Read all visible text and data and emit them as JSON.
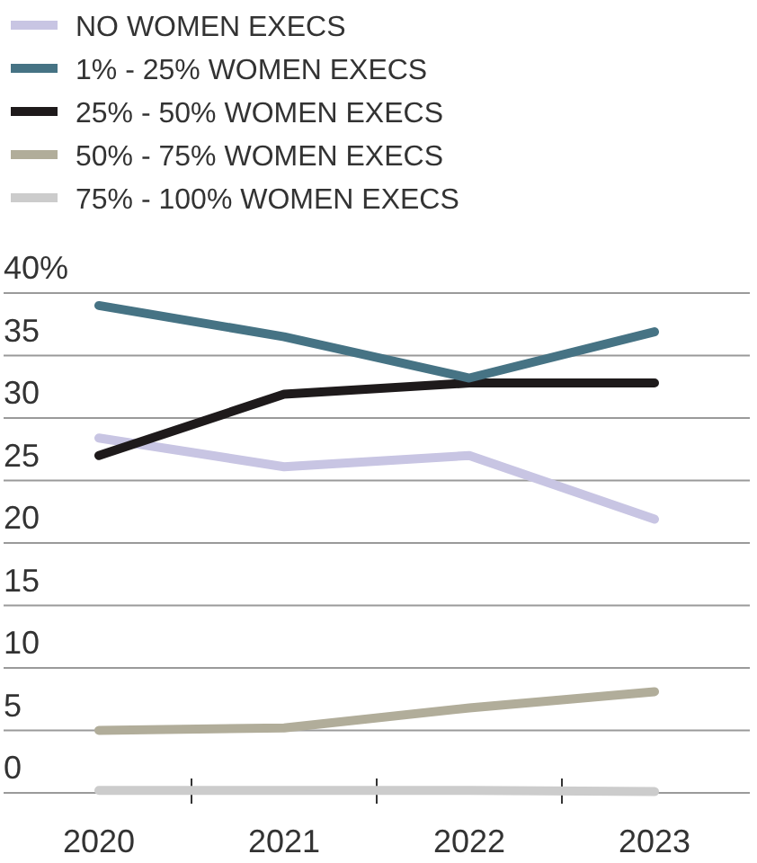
{
  "chart_data": {
    "type": "line",
    "categories": [
      "2020",
      "2021",
      "2022",
      "2023"
    ],
    "series": [
      {
        "name": "NO WOMEN EXECS",
        "color": "#c8c5e3",
        "values": [
          28.4,
          26.1,
          27.0,
          21.9
        ]
      },
      {
        "name": "1% - 25% WOMEN EXECS",
        "color": "#467384",
        "values": [
          39.0,
          36.5,
          33.2,
          36.9
        ]
      },
      {
        "name": "25% - 50% WOMEN EXECS",
        "color": "#1e1a1b",
        "values": [
          27.0,
          31.9,
          32.8,
          32.8
        ]
      },
      {
        "name": "50% - 75% WOMEN EXECS",
        "color": "#b1ad9a",
        "values": [
          5.0,
          5.2,
          6.8,
          8.1
        ]
      },
      {
        "name": "75% - 100% WOMEN EXECS",
        "color": "#cccccc",
        "values": [
          0.2,
          0.2,
          0.2,
          0.1
        ]
      }
    ],
    "ylim": [
      0,
      40
    ],
    "yticks": [
      0,
      5,
      10,
      15,
      20,
      25,
      30,
      35,
      {
        "value": 40,
        "label": "40%"
      }
    ],
    "grid": "y",
    "legend": "top left",
    "marker": "none",
    "line_style": "solid"
  }
}
